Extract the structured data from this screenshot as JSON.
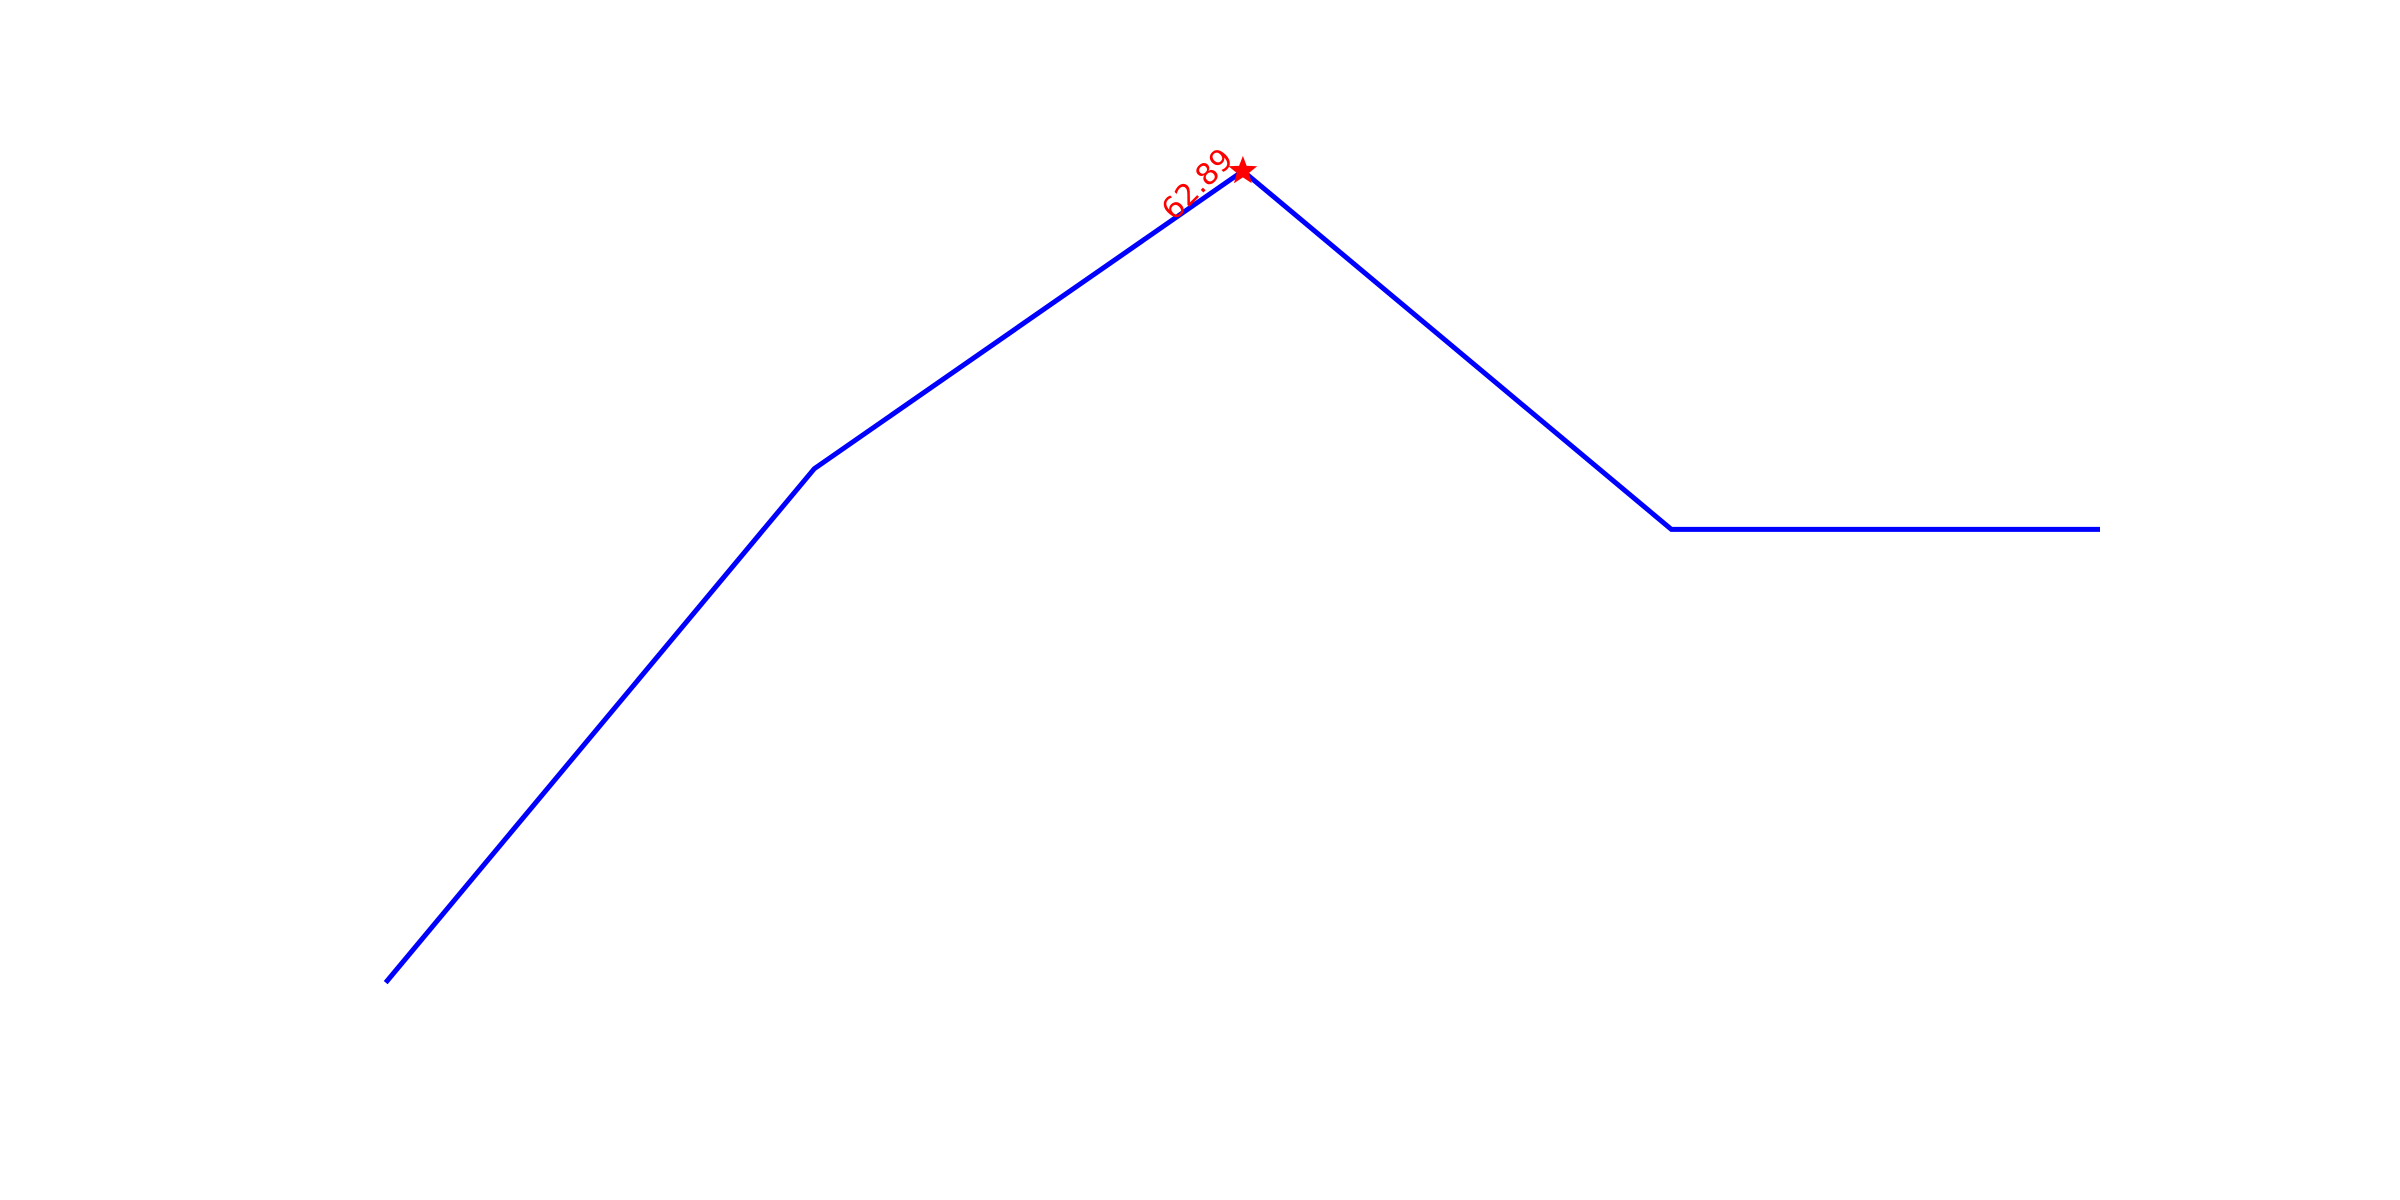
{
  "chart_data": {
    "type": "line",
    "x": [
      0,
      1,
      2,
      3,
      4
    ],
    "series": [
      {
        "values": [
          5.4,
          41.8,
          62.89,
          37.5,
          37.5
        ]
      }
    ],
    "xlim": [
      -0.9,
      4.7
    ],
    "ylim": [
      -10,
      75
    ],
    "grid": false,
    "axes_visible": false,
    "legend": "none",
    "line_color": "#0000ff",
    "highlight": {
      "index": 2,
      "value": 62.89,
      "label": "62.89",
      "marker": "star",
      "color": "#ff0000",
      "label_rotation_deg": -45
    }
  }
}
